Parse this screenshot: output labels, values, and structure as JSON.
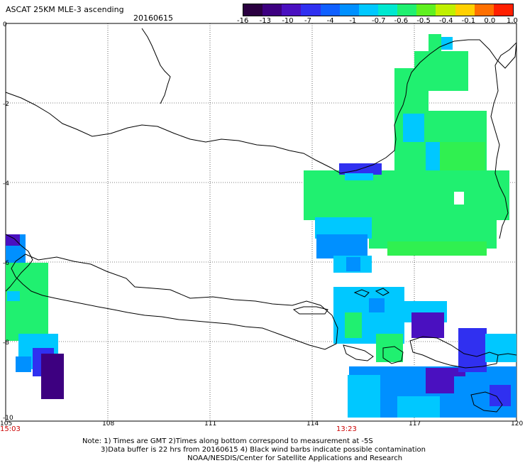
{
  "header": {
    "title": "ASCAT 25KM MLE-3 ascending",
    "date": "20160615"
  },
  "colorbar": {
    "labels": [
      "-16",
      "-13",
      "-10",
      "-7",
      "-4",
      "-1",
      "-0.7",
      "-0.6",
      "-0.5",
      "-0.4",
      "-0.1",
      "0.0",
      "1.0"
    ],
    "colors": [
      "#2a0040",
      "#3d0080",
      "#4a10c0",
      "#3030f0",
      "#1060ff",
      "#0090ff",
      "#00c8ff",
      "#00e8d0",
      "#20f070",
      "#60f020",
      "#c0f000",
      "#ffd000",
      "#ff7000",
      "#ff2000"
    ]
  },
  "axes": {
    "y_labels": [
      "0",
      "-2",
      "-4",
      "-6",
      "-8",
      "-10"
    ],
    "x_labels": [
      "105",
      "108",
      "111",
      "114",
      "117",
      "120"
    ]
  },
  "times": {
    "left": "15:03",
    "middle": "13:23"
  },
  "notes": {
    "line1": "Note: 1) Times are GMT 2)Times along bottom correspond to measurement at -5S",
    "line2": "3)Data buffer is 22 hrs from 20160615 4) Black wind barbs indicate possible contamination",
    "line3": "NOAA/NESDIS/Center for Satellite Applications and Research"
  }
}
